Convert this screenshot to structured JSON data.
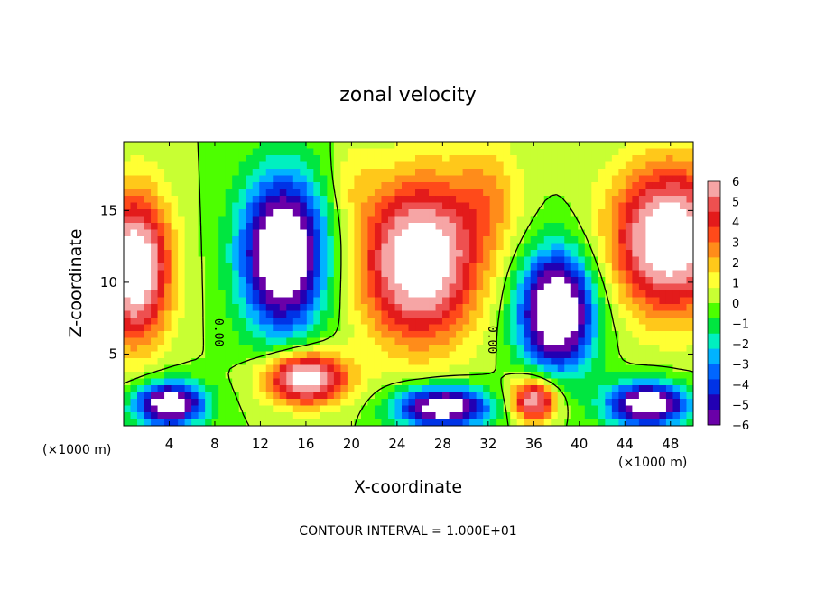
{
  "chart_data": {
    "type": "heatmap",
    "title": "zonal velocity",
    "xlabel": "X-coordinate",
    "ylabel": "Z-coordinate",
    "x_unit_left": "(×1000 m)",
    "x_unit_right": "(×1000 m)",
    "xlim": [
      0,
      50
    ],
    "ylim": [
      0,
      19.8
    ],
    "x_ticks": [
      4,
      8,
      12,
      16,
      20,
      24,
      28,
      32,
      36,
      40,
      44,
      48
    ],
    "y_ticks": [
      5,
      10,
      15
    ],
    "footer": "CONTOUR INTERVAL = 1.000E+01",
    "colorbar": {
      "min": -6,
      "max": 6,
      "labels": [
        6,
        5,
        4,
        3,
        2,
        1,
        0,
        -1,
        -2,
        -3,
        -4,
        -5,
        -6
      ],
      "colors": [
        "#f6a5a5",
        "#ee5050",
        "#e31b1b",
        "#ff4a1a",
        "#ff8c1a",
        "#ffc81a",
        "#ffff33",
        "#c8ff33",
        "#4dff00",
        "#00e640",
        "#00f0c0",
        "#00b3ff",
        "#0066ff",
        "#0033e6",
        "#2200b3",
        "#6a00a8"
      ]
    },
    "contour_labels": [
      "0.00",
      "0.00"
    ],
    "contour_label_x": [
      8,
      32
    ],
    "contour_label_y": [
      6.5,
      6.0
    ],
    "fields": {
      "uniform": 0.0,
      "blobs": [
        {
          "x": 1.0,
          "y": 11.0,
          "sx": 3.0,
          "sy": 5.0,
          "v": 8.0
        },
        {
          "x": 14.0,
          "y": 12.0,
          "sx": 3.6,
          "sy": 5.2,
          "v": -9.0
        },
        {
          "x": 26.0,
          "y": 11.5,
          "sx": 5.0,
          "sy": 5.5,
          "v": 8.0
        },
        {
          "x": 38.0,
          "y": 8.0,
          "sx": 3.2,
          "sy": 4.0,
          "v": -9.0
        },
        {
          "x": 48.0,
          "y": 13.0,
          "sx": 5.0,
          "sy": 5.0,
          "v": 8.0
        },
        {
          "x": 16.0,
          "y": 3.3,
          "sx": 3.5,
          "sy": 1.8,
          "v": 7.5
        },
        {
          "x": 4.0,
          "y": 1.5,
          "sx": 3.0,
          "sy": 1.5,
          "v": -8.0
        },
        {
          "x": 28.0,
          "y": 1.3,
          "sx": 4.0,
          "sy": 1.4,
          "v": -8.0
        },
        {
          "x": 36.0,
          "y": 1.8,
          "sx": 2.0,
          "sy": 1.5,
          "v": 6.5
        },
        {
          "x": 46.0,
          "y": 1.5,
          "sx": 3.5,
          "sy": 1.5,
          "v": -8.0
        },
        {
          "x": 20.0,
          "y": 17.0,
          "sx": 2.0,
          "sy": 3.0,
          "v": 1.0
        },
        {
          "x": 32.0,
          "y": 16.0,
          "sx": 3.0,
          "sy": 4.0,
          "v": 2.0
        }
      ]
    }
  }
}
